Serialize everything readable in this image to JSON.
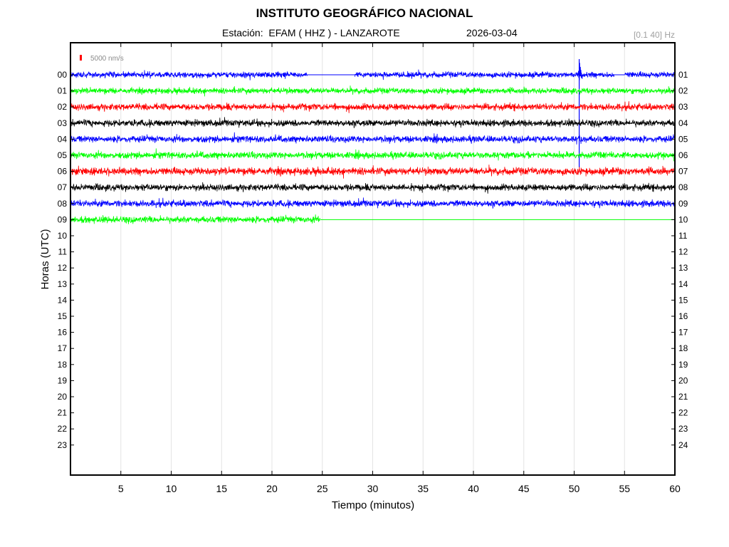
{
  "header": {
    "title": "INSTITUTO GEOGRÁFICO NACIONAL",
    "station_label": "Estación:  EFAM ( HHZ ) - LANZAROTE",
    "date": "2026-03-04",
    "band": "[0.1 40] Hz"
  },
  "chart_data": {
    "type": "line",
    "title": "INSTITUTO GEOGRÁFICO NACIONAL",
    "xlabel": "Tiempo (minutos)",
    "ylabel": "Horas (UTC)",
    "xlim": [
      0,
      60
    ],
    "x_ticks": [
      "5",
      "10",
      "15",
      "20",
      "25",
      "30",
      "35",
      "40",
      "45",
      "50",
      "55",
      "60"
    ],
    "left_hours": [
      "00",
      "01",
      "02",
      "03",
      "04",
      "05",
      "06",
      "07",
      "08",
      "09",
      "10",
      "11",
      "12",
      "13",
      "14",
      "15",
      "16",
      "17",
      "18",
      "19",
      "20",
      "21",
      "22",
      "23"
    ],
    "right_hours": [
      "01",
      "02",
      "03",
      "04",
      "05",
      "06",
      "07",
      "08",
      "09",
      "10",
      "11",
      "12",
      "13",
      "14",
      "15",
      "16",
      "17",
      "18",
      "19",
      "20",
      "21",
      "22",
      "23",
      "24"
    ],
    "scale_label": "5000 nm/s",
    "grid": true,
    "colors": [
      "#0000ff",
      "#00ff00",
      "#ff0000",
      "#000000"
    ],
    "traces": [
      {
        "hour": "00",
        "color": "#0000ff",
        "amplitude": 7,
        "gaps": [
          [
            23.5,
            28.2
          ],
          [
            54,
            55
          ]
        ],
        "event_minute": 50.5
      },
      {
        "hour": "01",
        "color": "#00ff00",
        "amplitude": 7
      },
      {
        "hour": "02",
        "color": "#ff0000",
        "amplitude": 8
      },
      {
        "hour": "03",
        "color": "#000000",
        "amplitude": 8
      },
      {
        "hour": "04",
        "color": "#0000ff",
        "amplitude": 8,
        "event_minute": 50.5
      },
      {
        "hour": "05",
        "color": "#00ff00",
        "amplitude": 8
      },
      {
        "hour": "06",
        "color": "#ff0000",
        "amplitude": 9
      },
      {
        "hour": "07",
        "color": "#000000",
        "amplitude": 8
      },
      {
        "hour": "08",
        "color": "#0000ff",
        "amplitude": 8
      },
      {
        "hour": "09",
        "color": "#00ff00",
        "amplitude": 8,
        "data_end_minute": 24.8
      }
    ]
  }
}
